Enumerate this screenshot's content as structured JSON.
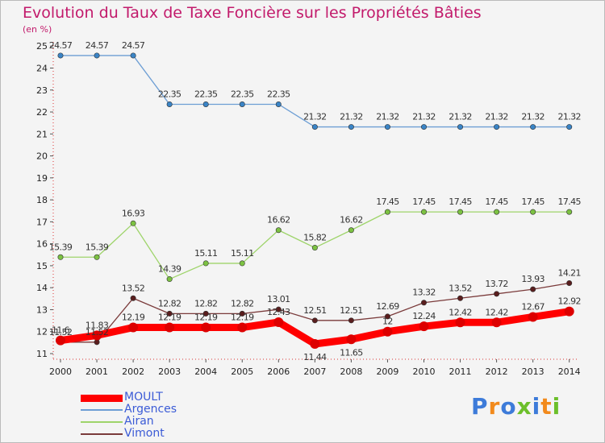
{
  "title": "Evolution du Taux de Taxe Foncière sur les Propriétés Bâties",
  "unit": "(en %)",
  "logo": {
    "text": "Proxiti",
    "colors": [
      "#3d7bd9",
      "#f28a1c",
      "#3d7bd9",
      "#6cbf2a",
      "#3d7bd9",
      "#f28a1c",
      "#6cbf2a"
    ]
  },
  "chart_data": {
    "type": "line",
    "title": "Evolution du Taux de Taxe Foncière sur les Propriétés Bâties",
    "ylabel": "(en %)",
    "xlabel": "",
    "ylim": [
      11,
      25
    ],
    "yticks": [
      11,
      12,
      13,
      14,
      15,
      16,
      17,
      18,
      19,
      20,
      21,
      22,
      23,
      24,
      25
    ],
    "categories": [
      "2000",
      "2001",
      "2002",
      "2003",
      "2004",
      "2005",
      "2006",
      "2007",
      "2008",
      "2009",
      "2010",
      "2011",
      "2012",
      "2013",
      "2014"
    ],
    "series": [
      {
        "name": "MOULT",
        "color": "#ff0000",
        "marker": "#dd0000",
        "style": "thick",
        "values": [
          11.6,
          11.83,
          12.19,
          12.19,
          12.19,
          12.19,
          12.43,
          11.44,
          11.65,
          12,
          12.24,
          12.42,
          12.42,
          12.67,
          12.92
        ],
        "labels": [
          "11.6",
          "11.83",
          "12.19",
          "12.19",
          "12.19",
          "12.19",
          "12.43",
          "11.44",
          "11.65",
          "12",
          "12.24",
          "12.42",
          "12.42",
          "12.67",
          "12.92"
        ]
      },
      {
        "name": "Argences",
        "color": "#6d9ed4",
        "marker": "#3a84c6",
        "values": [
          24.57,
          24.57,
          24.57,
          22.35,
          22.35,
          22.35,
          22.35,
          21.32,
          21.32,
          21.32,
          21.32,
          21.32,
          21.32,
          21.32,
          21.32
        ],
        "labels": [
          "24.57",
          "24.57",
          "24.57",
          "22.35",
          "22.35",
          "22.35",
          "22.35",
          "21.32",
          "21.32",
          "21.32",
          "21.32",
          "21.32",
          "21.32",
          "21.32",
          "21.32"
        ]
      },
      {
        "name": "Airan",
        "color": "#9ed46a",
        "marker": "#7cc242",
        "values": [
          15.39,
          15.39,
          16.93,
          14.39,
          15.11,
          15.11,
          16.62,
          15.82,
          16.62,
          17.45,
          17.45,
          17.45,
          17.45,
          17.45,
          17.45
        ],
        "labels": [
          "15.39",
          "15.39",
          "16.93",
          "14.39",
          "15.11",
          "15.11",
          "16.62",
          "15.82",
          "16.62",
          "17.45",
          "17.45",
          "17.45",
          "17.45",
          "17.45",
          "17.45"
        ]
      },
      {
        "name": "Vimont",
        "color": "#7a3a3a",
        "marker": "#5a1e1e",
        "values": [
          11.52,
          11.52,
          13.52,
          12.82,
          12.82,
          12.82,
          13.01,
          12.51,
          12.51,
          12.69,
          13.32,
          13.52,
          13.72,
          13.93,
          14.21
        ],
        "labels": [
          "11.52",
          "11.52",
          "13.52",
          "12.82",
          "12.82",
          "12.82",
          "13.01",
          "12.51",
          "12.51",
          "12.69",
          "13.32",
          "13.52",
          "13.72",
          "13.93",
          "14.21"
        ]
      }
    ]
  }
}
